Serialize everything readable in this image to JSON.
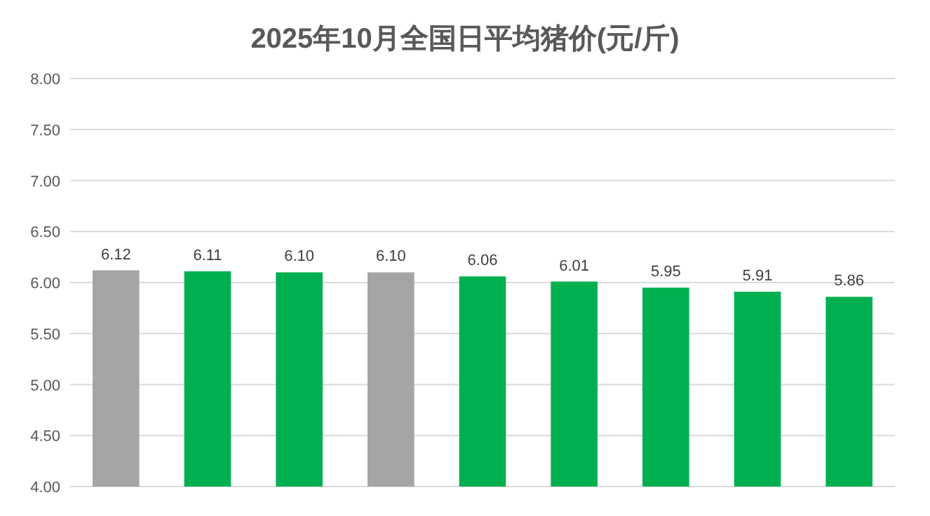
{
  "chart_data": {
    "type": "bar",
    "title": "2025年10月全国日平均猪价(元/斤)",
    "categories": [
      null,
      null,
      null,
      null,
      null,
      null,
      null,
      null,
      null
    ],
    "values": [
      6.12,
      6.11,
      6.1,
      6.1,
      6.06,
      6.01,
      5.95,
      5.91,
      5.86
    ],
    "value_labels": [
      "6.12",
      "6.11",
      "6.10",
      "6.10",
      "6.06",
      "6.01",
      "5.95",
      "5.91",
      "5.86"
    ],
    "colors": [
      "#a5a5a5",
      "#00b050",
      "#00b050",
      "#a5a5a5",
      "#00b050",
      "#00b050",
      "#00b050",
      "#00b050",
      "#00b050"
    ],
    "ylim": [
      4,
      8
    ],
    "yticks": [
      {
        "value": 4,
        "label": "4.00"
      },
      {
        "value": 4.5,
        "label": "4.50"
      },
      {
        "value": 5,
        "label": "5.00"
      },
      {
        "value": 5.5,
        "label": "5.50"
      },
      {
        "value": 6,
        "label": "6.00"
      },
      {
        "value": 6.5,
        "label": "6.50"
      },
      {
        "value": 7,
        "label": "7.00"
      },
      {
        "value": 7.5,
        "label": "7.50"
      },
      {
        "value": 8,
        "label": "8.00"
      }
    ],
    "grid": "y"
  }
}
